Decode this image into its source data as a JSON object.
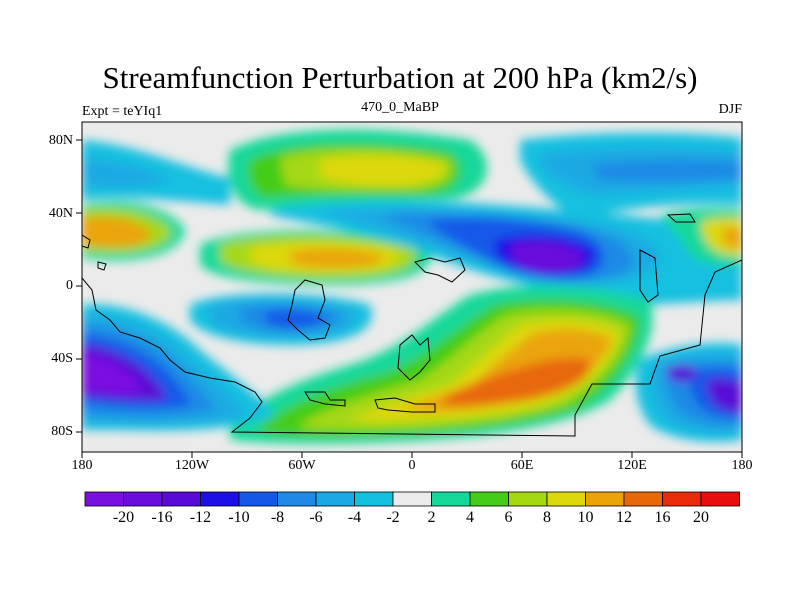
{
  "title": "Streamfunction Perturbation at 200 hPa (km2/s)",
  "left_label": "Expt = teYIq1",
  "center_label": "470_0_MaBP",
  "right_label": "DJF",
  "lat_ticks": [
    "80N",
    "40N",
    "0",
    "40S",
    "80S"
  ],
  "lon_ticks": [
    "180",
    "120W",
    "60W",
    "0",
    "60E",
    "120E",
    "180"
  ],
  "colorbar": {
    "labels": [
      "-20",
      "-16",
      "-12",
      "-10",
      "-8",
      "-6",
      "-4",
      "-2",
      "2",
      "4",
      "6",
      "8",
      "10",
      "12",
      "16",
      "20"
    ],
    "colors": [
      "#7a10e0",
      "#6a0ddb",
      "#5a0ad6",
      "#1c10e6",
      "#1458e8",
      "#1e8ae6",
      "#1aa9e2",
      "#12c0e0",
      "#ebebeb",
      "#12d89a",
      "#44cc18",
      "#a6d812",
      "#ddd80c",
      "#eaa40a",
      "#e86808",
      "#e82a0a",
      "#e80e0e"
    ]
  }
}
